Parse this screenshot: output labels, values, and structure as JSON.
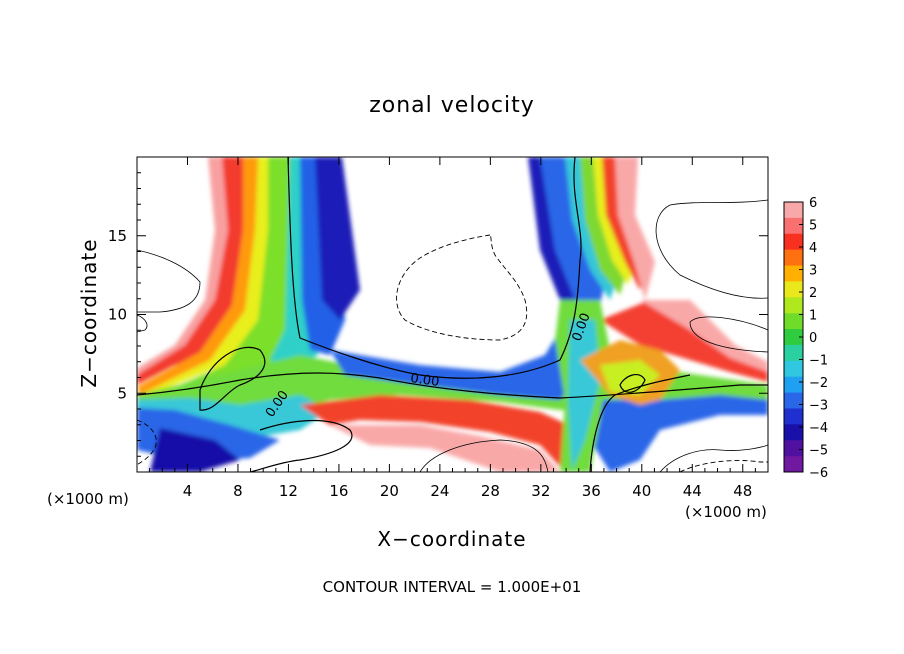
{
  "chart_data": {
    "type": "heatmap",
    "title": "zonal velocity",
    "xlabel": "X−coordinate",
    "ylabel": "Z−coordinate",
    "x_unit_left": "(×1000 m)",
    "x_unit_right": "(×1000 m)",
    "xlim": [
      0,
      50
    ],
    "ylim": [
      0,
      20
    ],
    "x_ticks": [
      4,
      8,
      12,
      16,
      20,
      24,
      28,
      32,
      36,
      40,
      44,
      48
    ],
    "y_ticks": [
      5,
      10,
      15
    ],
    "colorbar": {
      "ticks": [
        "6",
        "5",
        "4",
        "3",
        "2",
        "1",
        "0",
        "−1",
        "−2",
        "−3",
        "−4",
        "−5",
        "−6"
      ],
      "range": [
        -6,
        6
      ]
    },
    "contour_labels": [
      "0.00",
      "0.00",
      "0.00"
    ],
    "footnote": "CONTOUR INTERVAL = 1.000E+01",
    "grid": false
  }
}
